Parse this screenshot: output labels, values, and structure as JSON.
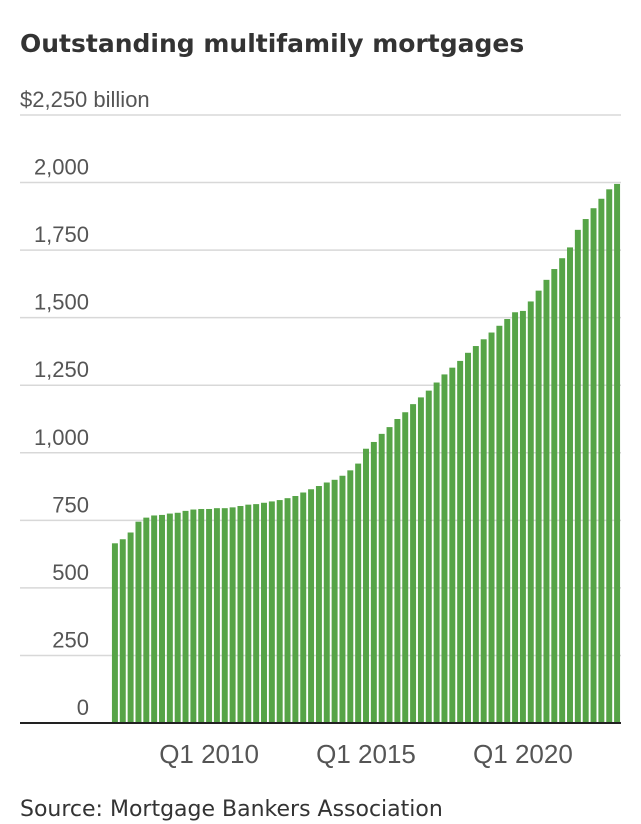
{
  "chart_data": {
    "type": "bar",
    "title": "Outstanding multifamily mortgages",
    "source": "Source: Mortgage Bankers Association",
    "color": "#56a447",
    "grid": true,
    "categories": [
      null,
      null,
      null,
      null,
      null,
      null,
      null,
      null,
      null,
      null,
      null,
      null,
      "Q1 2010",
      null,
      null,
      null,
      null,
      null,
      null,
      null,
      null,
      null,
      null,
      null,
      null,
      null,
      null,
      null,
      null,
      null,
      null,
      null,
      "Q1 2015",
      null,
      null,
      null,
      null,
      null,
      null,
      null,
      null,
      null,
      null,
      null,
      null,
      null,
      null,
      null,
      null,
      null,
      null,
      null,
      "Q1 2020",
      null,
      null,
      null,
      null,
      null,
      null,
      null,
      null,
      null,
      null,
      null,
      null
    ],
    "values": [
      665,
      680,
      705,
      745,
      760,
      768,
      770,
      775,
      778,
      785,
      790,
      792,
      792,
      795,
      795,
      798,
      803,
      808,
      810,
      815,
      820,
      825,
      832,
      840,
      853,
      865,
      877,
      890,
      900,
      915,
      935,
      960,
      1015,
      1040,
      1070,
      1095,
      1125,
      1150,
      1180,
      1205,
      1230,
      1260,
      1290,
      1315,
      1340,
      1370,
      1395,
      1420,
      1445,
      1470,
      1495,
      1520,
      1525,
      1560,
      1600,
      1640,
      1680,
      1720,
      1760,
      1825,
      1865,
      1905,
      1940,
      1975,
      1995
    ],
    "ylim": [
      0,
      2250
    ],
    "yticks": [
      0,
      250,
      500,
      750,
      {
        "value": 1000,
        "label": "1,000"
      },
      {
        "value": 1250,
        "label": "1,250"
      },
      {
        "value": 1500,
        "label": "1,500"
      },
      {
        "value": 1750,
        "label": "1,750"
      },
      {
        "value": 2000,
        "label": "2,000"
      },
      {
        "value": 2250,
        "label": "$2,250 billion"
      }
    ]
  }
}
